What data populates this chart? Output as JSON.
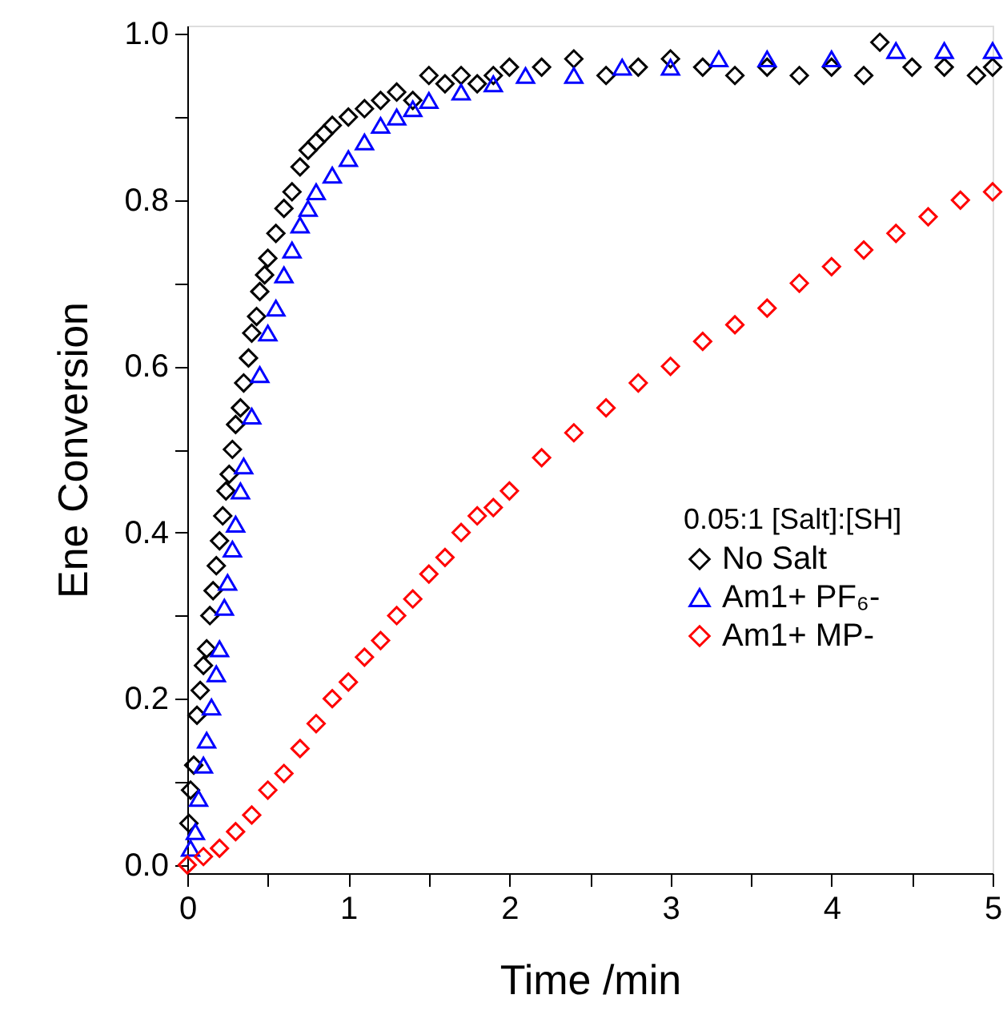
{
  "chart_data": {
    "type": "scatter",
    "xlabel": "Time /min",
    "ylabel": "Ene Conversion",
    "legend_title": "0.05:1 [Salt]:[SH]",
    "legend": "right",
    "grid": false,
    "xlim": [
      0,
      5
    ],
    "ylim": [
      -0.01,
      1.01
    ],
    "xticks": [
      0,
      {
        "value": 0.5,
        "label": null
      },
      1,
      {
        "value": 1.5,
        "label": null
      },
      2,
      {
        "value": 2.5,
        "label": null
      },
      3,
      {
        "value": 3.5,
        "label": null
      },
      4,
      {
        "value": 4.5,
        "label": null
      },
      5
    ],
    "yticks": [
      {
        "value": 0,
        "label": "0.0"
      },
      {
        "value": 0.1,
        "label": null
      },
      {
        "value": 0.2,
        "label": "0.2"
      },
      {
        "value": 0.3,
        "label": null
      },
      {
        "value": 0.4,
        "label": "0.4"
      },
      {
        "value": 0.5,
        "label": null
      },
      {
        "value": 0.6,
        "label": "0.6"
      },
      {
        "value": 0.7,
        "label": null
      },
      {
        "value": 0.8,
        "label": "0.8"
      },
      {
        "value": 0.9,
        "label": null
      },
      {
        "value": 1,
        "label": "1.0"
      }
    ],
    "series": [
      {
        "name": "No Salt",
        "color": "#000000",
        "marker": "diamond",
        "x": [
          0.01,
          0.02,
          0.04,
          0.06,
          0.08,
          0.1,
          0.12,
          0.14,
          0.16,
          0.18,
          0.2,
          0.22,
          0.24,
          0.26,
          0.28,
          0.3,
          0.33,
          0.35,
          0.38,
          0.4,
          0.43,
          0.45,
          0.48,
          0.5,
          0.55,
          0.6,
          0.65,
          0.7,
          0.75,
          0.8,
          0.85,
          0.9,
          1.0,
          1.1,
          1.2,
          1.3,
          1.4,
          1.5,
          1.6,
          1.7,
          1.8,
          1.9,
          2.0,
          2.2,
          2.4,
          2.6,
          2.8,
          3.0,
          3.2,
          3.4,
          3.6,
          3.8,
          4.0,
          4.2,
          4.3,
          4.5,
          4.7,
          4.9,
          5.0
        ],
        "values": [
          0.05,
          0.09,
          0.12,
          0.18,
          0.21,
          0.24,
          0.26,
          0.3,
          0.33,
          0.36,
          0.39,
          0.42,
          0.45,
          0.47,
          0.5,
          0.53,
          0.55,
          0.58,
          0.61,
          0.64,
          0.66,
          0.69,
          0.71,
          0.73,
          0.76,
          0.79,
          0.81,
          0.84,
          0.86,
          0.87,
          0.88,
          0.89,
          0.9,
          0.91,
          0.92,
          0.93,
          0.92,
          0.95,
          0.94,
          0.95,
          0.94,
          0.95,
          0.96,
          0.96,
          0.97,
          0.95,
          0.96,
          0.97,
          0.96,
          0.95,
          0.96,
          0.95,
          0.96,
          0.95,
          0.99,
          0.96,
          0.96,
          0.95,
          0.96
        ]
      },
      {
        "name": "Am1+ PF₆-",
        "color": "#0000ff",
        "marker": "triangle",
        "x": [
          0.02,
          0.05,
          0.07,
          0.1,
          0.12,
          0.15,
          0.18,
          0.2,
          0.23,
          0.25,
          0.28,
          0.3,
          0.33,
          0.35,
          0.4,
          0.45,
          0.5,
          0.55,
          0.6,
          0.65,
          0.7,
          0.75,
          0.8,
          0.9,
          1.0,
          1.1,
          1.2,
          1.3,
          1.4,
          1.5,
          1.7,
          1.9,
          2.1,
          2.4,
          2.7,
          3.0,
          3.3,
          3.6,
          4.0,
          4.4,
          4.7,
          5.0
        ],
        "values": [
          0.02,
          0.04,
          0.08,
          0.12,
          0.15,
          0.19,
          0.23,
          0.26,
          0.31,
          0.34,
          0.38,
          0.41,
          0.45,
          0.48,
          0.54,
          0.59,
          0.64,
          0.67,
          0.71,
          0.74,
          0.77,
          0.79,
          0.81,
          0.83,
          0.85,
          0.87,
          0.89,
          0.9,
          0.91,
          0.92,
          0.93,
          0.94,
          0.95,
          0.95,
          0.96,
          0.96,
          0.97,
          0.97,
          0.97,
          0.98,
          0.98,
          0.98
        ]
      },
      {
        "name": "Am1+ MP-",
        "color": "#ff0000",
        "marker": "diamond",
        "x": [
          0.0,
          0.1,
          0.2,
          0.3,
          0.4,
          0.5,
          0.6,
          0.7,
          0.8,
          0.9,
          1.0,
          1.1,
          1.2,
          1.3,
          1.4,
          1.5,
          1.6,
          1.7,
          1.8,
          1.9,
          2.0,
          2.2,
          2.4,
          2.6,
          2.8,
          3.0,
          3.2,
          3.4,
          3.6,
          3.8,
          4.0,
          4.2,
          4.4,
          4.6,
          4.8,
          5.0
        ],
        "values": [
          0.0,
          0.01,
          0.02,
          0.04,
          0.06,
          0.09,
          0.11,
          0.14,
          0.17,
          0.2,
          0.22,
          0.25,
          0.27,
          0.3,
          0.32,
          0.35,
          0.37,
          0.4,
          0.42,
          0.43,
          0.45,
          0.49,
          0.52,
          0.55,
          0.58,
          0.6,
          0.63,
          0.65,
          0.67,
          0.7,
          0.72,
          0.74,
          0.76,
          0.78,
          0.8,
          0.81
        ]
      }
    ]
  }
}
